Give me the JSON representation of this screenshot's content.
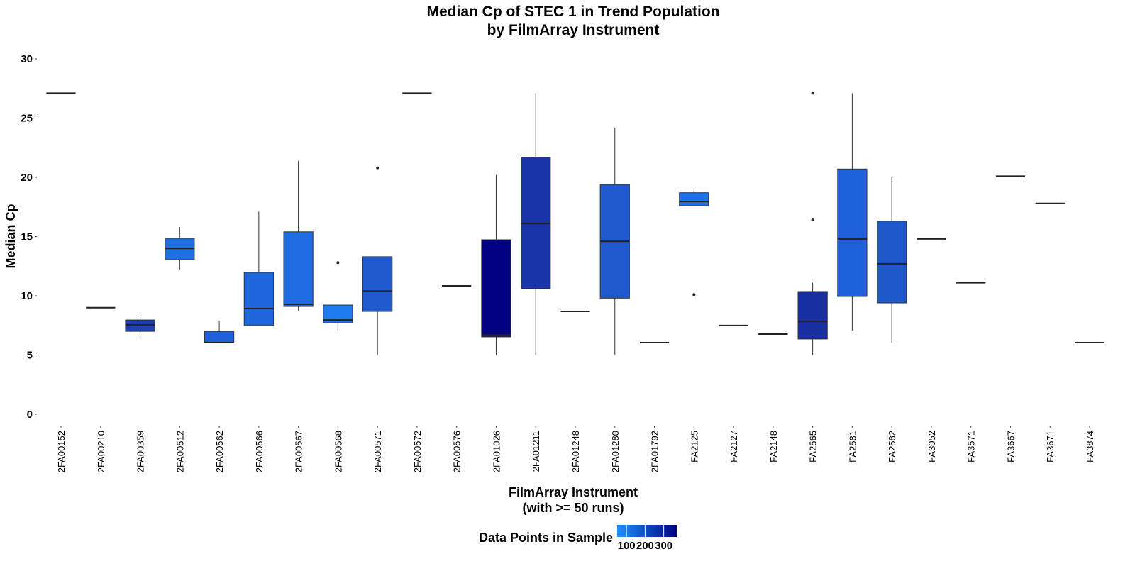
{
  "chart_data": {
    "type": "box",
    "title": [
      "Median Cp of STEC 1 in Trend Population",
      "by FilmArray Instrument"
    ],
    "x_label": [
      "FilmArray Instrument",
      "(with >= 50 runs)"
    ],
    "y_label": "Median Cp",
    "ylim": [
      0,
      30
    ],
    "yticks": [
      0,
      5,
      10,
      15,
      20,
      25,
      30
    ],
    "categories": [
      "2FA00152",
      "2FA00210",
      "2FA00359",
      "2FA00512",
      "2FA00562",
      "2FA00566",
      "2FA00567",
      "2FA00568",
      "2FA00571",
      "2FA00572",
      "2FA00576",
      "2FA01026",
      "2FA01211",
      "2FA01248",
      "2FA01280",
      "2FA01792",
      "FA2125",
      "FA2127",
      "FA2148",
      "FA2565",
      "FA2581",
      "FA2582",
      "FA3052",
      "FA3571",
      "FA3667",
      "FA3671",
      "FA3874"
    ],
    "boxes": [
      {
        "median": 27.1
      },
      {
        "median": 9.0
      },
      {
        "min": 6.65,
        "q1": 7.0,
        "median": 7.55,
        "q3": 7.96,
        "max": 8.56,
        "color": "#2040b0"
      },
      {
        "min": 12.2,
        "q1": 13.05,
        "median": 14.0,
        "q3": 14.85,
        "max": 15.8,
        "color": "#1f6fe0"
      },
      {
        "min": 6.05,
        "q1": 6.05,
        "median": 6.05,
        "q3": 7.0,
        "max": 7.9,
        "color": "#1f5fd8"
      },
      {
        "min": 7.49,
        "q1": 7.49,
        "median": 8.92,
        "q3": 11.98,
        "max": 17.1,
        "color": "#1f66dd"
      },
      {
        "min": 8.74,
        "q1": 9.1,
        "median": 9.28,
        "q3": 15.4,
        "max": 21.4,
        "color": "#1f6be0"
      },
      {
        "min": 7.07,
        "q1": 7.72,
        "median": 7.96,
        "q3": 9.22,
        "max": 9.22,
        "outliers": [
          12.8
        ],
        "color": "#1e7cf0"
      },
      {
        "min": 5.0,
        "q1": 8.68,
        "median": 10.4,
        "q3": 13.3,
        "max": 13.3,
        "outliers": [
          20.8
        ],
        "color": "#1f5ad0"
      },
      {
        "median": 27.1
      },
      {
        "median": 10.84
      },
      {
        "min": 5.0,
        "q1": 6.53,
        "median": 6.7,
        "q3": 14.73,
        "max": 20.2,
        "color": "#000080"
      },
      {
        "min": 5.0,
        "q1": 10.6,
        "median": 16.1,
        "q3": 21.7,
        "max": 27.1,
        "color": "#1a33a8"
      },
      {
        "median": 8.68
      },
      {
        "min": 5.0,
        "q1": 9.8,
        "median": 14.6,
        "q3": 19.4,
        "max": 24.2,
        "color": "#1f5ad0"
      },
      {
        "median": 6.05
      },
      {
        "min": 17.6,
        "q1": 17.6,
        "median": 17.96,
        "q3": 18.7,
        "max": 18.9,
        "outliers": [
          10.1
        ],
        "color": "#1e72e8"
      },
      {
        "median": 7.49
      },
      {
        "median": 6.77
      },
      {
        "min": 5.0,
        "q1": 6.35,
        "median": 7.84,
        "q3": 10.36,
        "max": 11.1,
        "outliers": [
          27.1,
          16.4
        ],
        "color": "#1a2fa0"
      },
      {
        "min": 7.07,
        "q1": 9.94,
        "median": 14.8,
        "q3": 20.7,
        "max": 27.1,
        "color": "#1f60d8"
      },
      {
        "min": 6.05,
        "q1": 9.4,
        "median": 12.7,
        "q3": 16.3,
        "max": 20.0,
        "color": "#1f58cc"
      },
      {
        "median": 14.8
      },
      {
        "median": 11.1
      },
      {
        "median": 20.1
      },
      {
        "median": 17.8
      },
      {
        "median": 6.05
      }
    ],
    "colorbar": {
      "title": "Data Points in Sample",
      "colors": [
        "#1e90ff",
        "#000080"
      ],
      "lim": [
        50,
        370
      ],
      "ticks": [
        100,
        200,
        300
      ]
    }
  }
}
